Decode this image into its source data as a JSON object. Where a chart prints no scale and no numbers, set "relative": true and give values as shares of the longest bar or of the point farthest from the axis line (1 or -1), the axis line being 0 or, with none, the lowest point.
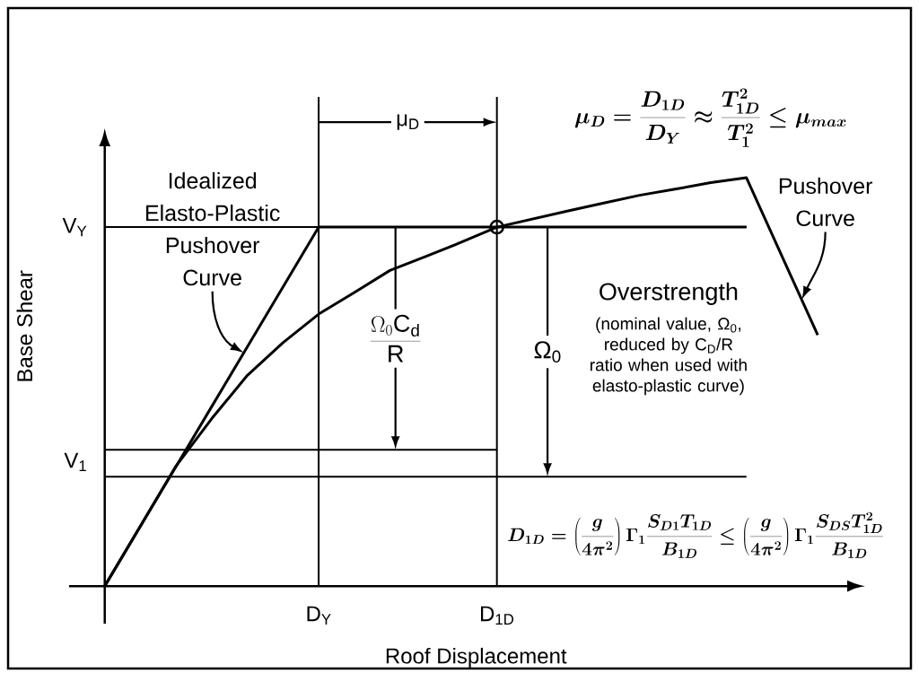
{
  "chart_data": {
    "type": "line",
    "relative": true,
    "xlabel": "Roof Displacement",
    "ylabel": "Base Shear",
    "categories": [
      null,
      null,
      null,
      null,
      null,
      null,
      "D$_{Y}$",
      null,
      null,
      null,
      null,
      "D$_{1D}$",
      null,
      null,
      null,
      null,
      null,
      null,
      null,
      null,
      null
    ],
    "series": [
      {
        "name": "Idealized Elasto-Plastic Pushover Curve",
        "color": "#000000",
        "values": [
          0,
          0.1465,
          0.293,
          0.4395,
          0.586,
          0.7325,
          0.879,
          0.879,
          0.879,
          0.879,
          0.879,
          0.879,
          0.879,
          0.879,
          0.879,
          0.879,
          0.879,
          0.879,
          0.879,
          null,
          null
        ]
      },
      {
        "name": "Pushover Curve",
        "color": "#000000",
        "values": [
          0,
          0.147,
          0.294,
          0.41,
          0.516,
          0.596,
          0.666,
          0.719,
          0.773,
          0.807,
          0.842,
          0.879,
          0.899,
          0.919,
          0.938,
          0.957,
          0.972,
          0.988,
          1,
          0.807,
          0.615
        ]
      },
      {
        "type": "scatter",
        "color": "#000000",
        "marker": "circle",
        "values": [
          null,
          null,
          null,
          null,
          null,
          null,
          null,
          null,
          null,
          null,
          null,
          0.879,
          null,
          null,
          null,
          null,
          null,
          null,
          null,
          null,
          null
        ]
      }
    ],
    "ref_lines": [
      {
        "axis": "x",
        "value": "D$_{Y}$"
      },
      {
        "axis": "x",
        "value": "D$_{1D}$"
      },
      {
        "axis": "y",
        "value": 0.879,
        "label": "V$_{Y}$"
      },
      {
        "axis": "y",
        "value": 0.334,
        "label": "V$_{1}$"
      },
      {
        "axis": "y",
        "value": 0.268
      }
    ],
    "annotations": [
      "μ$_{D}$",
      "\\mu_D = \\frac{D_{1D}}{D_Y} \\approx \\frac{T_{1D}^2}{T_1^2} \\le \\mu_{max}",
      "\\frac{\\Omega_0 \\mathrm{C}_\\mathrm{d}}{\\mathrm{R}}",
      "Ω$_{0}$",
      "Overstrength",
      "(nominal value, Ω$_{0}$, reduced by C$_{D}$/R ratio when used with elasto-plastic curve)",
      "D_{1D} = \\left(\\frac{g}{4\\pi^2}\\right)\\Gamma_1 \\frac{S_{D1}T_{1D}}{B_{1D}} \\le \\left(\\frac{g}{4\\pi^2}\\right)\\Gamma_1 \\frac{S_{DS}T_{1D}^2}{B_{1D}}"
    ]
  }
}
